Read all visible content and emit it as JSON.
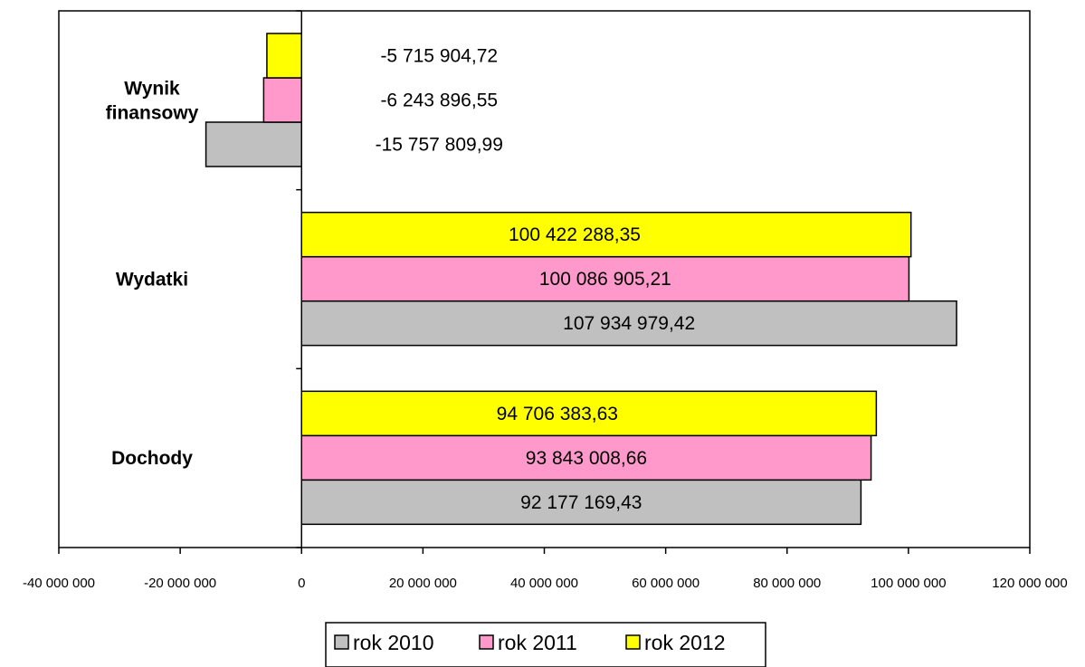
{
  "chart_data": {
    "type": "bar",
    "orientation": "horizontal",
    "categories": [
      "Dochody",
      "Wydatki",
      "Wynik finansowy"
    ],
    "series": [
      {
        "name": "rok 2010",
        "color": "#c0c0c0",
        "values": [
          92177169.43,
          107934979.42,
          -15757809.99
        ],
        "labels": [
          "92 177 169,43",
          "107 934 979,42",
          "-15 757 809,99"
        ]
      },
      {
        "name": "rok 2011",
        "color": "#ff99cc",
        "values": [
          93843008.66,
          100086905.21,
          -6243896.55
        ],
        "labels": [
          "93 843 008,66",
          "100 086 905,21",
          "-6 243 896,55"
        ]
      },
      {
        "name": "rok 2012",
        "color": "#ffff00",
        "values": [
          94706383.63,
          100422288.35,
          -5715904.72
        ],
        "labels": [
          "94 706 383,63",
          "100 422 288,35",
          "-5 715 904,72"
        ]
      }
    ],
    "xlim": [
      -40000000,
      120000000
    ],
    "xticks": [
      -40000000,
      -20000000,
      0,
      20000000,
      40000000,
      60000000,
      80000000,
      100000000,
      120000000
    ],
    "xtick_labels": [
      "-40 000 000",
      "-20 000 000",
      "0",
      "20 000 000",
      "40 000 000",
      "60 000 000",
      "80 000 000",
      "100 000 000",
      "120 000 000"
    ],
    "title": "",
    "xlabel": "",
    "ylabel": "",
    "grid": false,
    "legend": "bottom"
  }
}
